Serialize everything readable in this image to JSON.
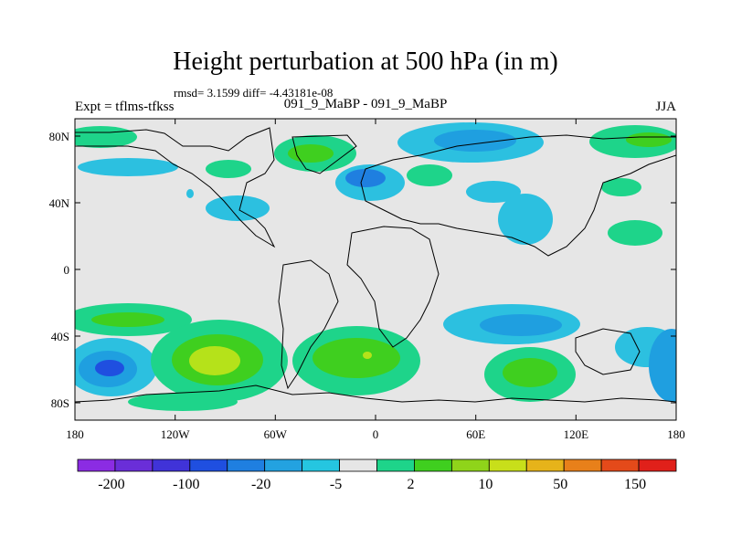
{
  "title": "Height perturbation at 500 hPa (in m)",
  "stats": "rmsd= 3.1599 diff= -4.43181e-08",
  "left_label": "Expt = tflms-tfkss",
  "center_label": "091_9_MaBP - 091_9_MaBP",
  "right_label": "JJA",
  "lat_ticks": [
    {
      "label": "80N"
    },
    {
      "label": "40N"
    },
    {
      "label": "0"
    },
    {
      "label": "40S"
    },
    {
      "label": "80S"
    }
  ],
  "lon_ticks": [
    {
      "label": "180"
    },
    {
      "label": "120W"
    },
    {
      "label": "60W"
    },
    {
      "label": "0"
    },
    {
      "label": "60E"
    },
    {
      "label": "120E"
    },
    {
      "label": "180"
    }
  ],
  "colorbar": {
    "colors": [
      "#8b2ce3",
      "#6a2ed8",
      "#4033d8",
      "#1f4fe0",
      "#1f7fe0",
      "#23a2e0",
      "#25c6e0",
      "#e6e6e6",
      "#1ed48a",
      "#3fcf1f",
      "#8fd41a",
      "#c8df1a",
      "#e6b31a",
      "#e8801a",
      "#e44a1a",
      "#e0201a"
    ],
    "labels": [
      "-200",
      "-100",
      "-20",
      "-5",
      "2",
      "10",
      "50",
      "150"
    ]
  },
  "legend_colors": {
    "land_fill": "#e6e6e6",
    "strong_neg": "#2a6fd8",
    "mid_neg": "#1f9fe0",
    "weak_neg": "#2cc0e0",
    "weak_pos": "#1ed48a",
    "mid_pos": "#3fcf1f",
    "strong_pos": "#b5e21a"
  }
}
